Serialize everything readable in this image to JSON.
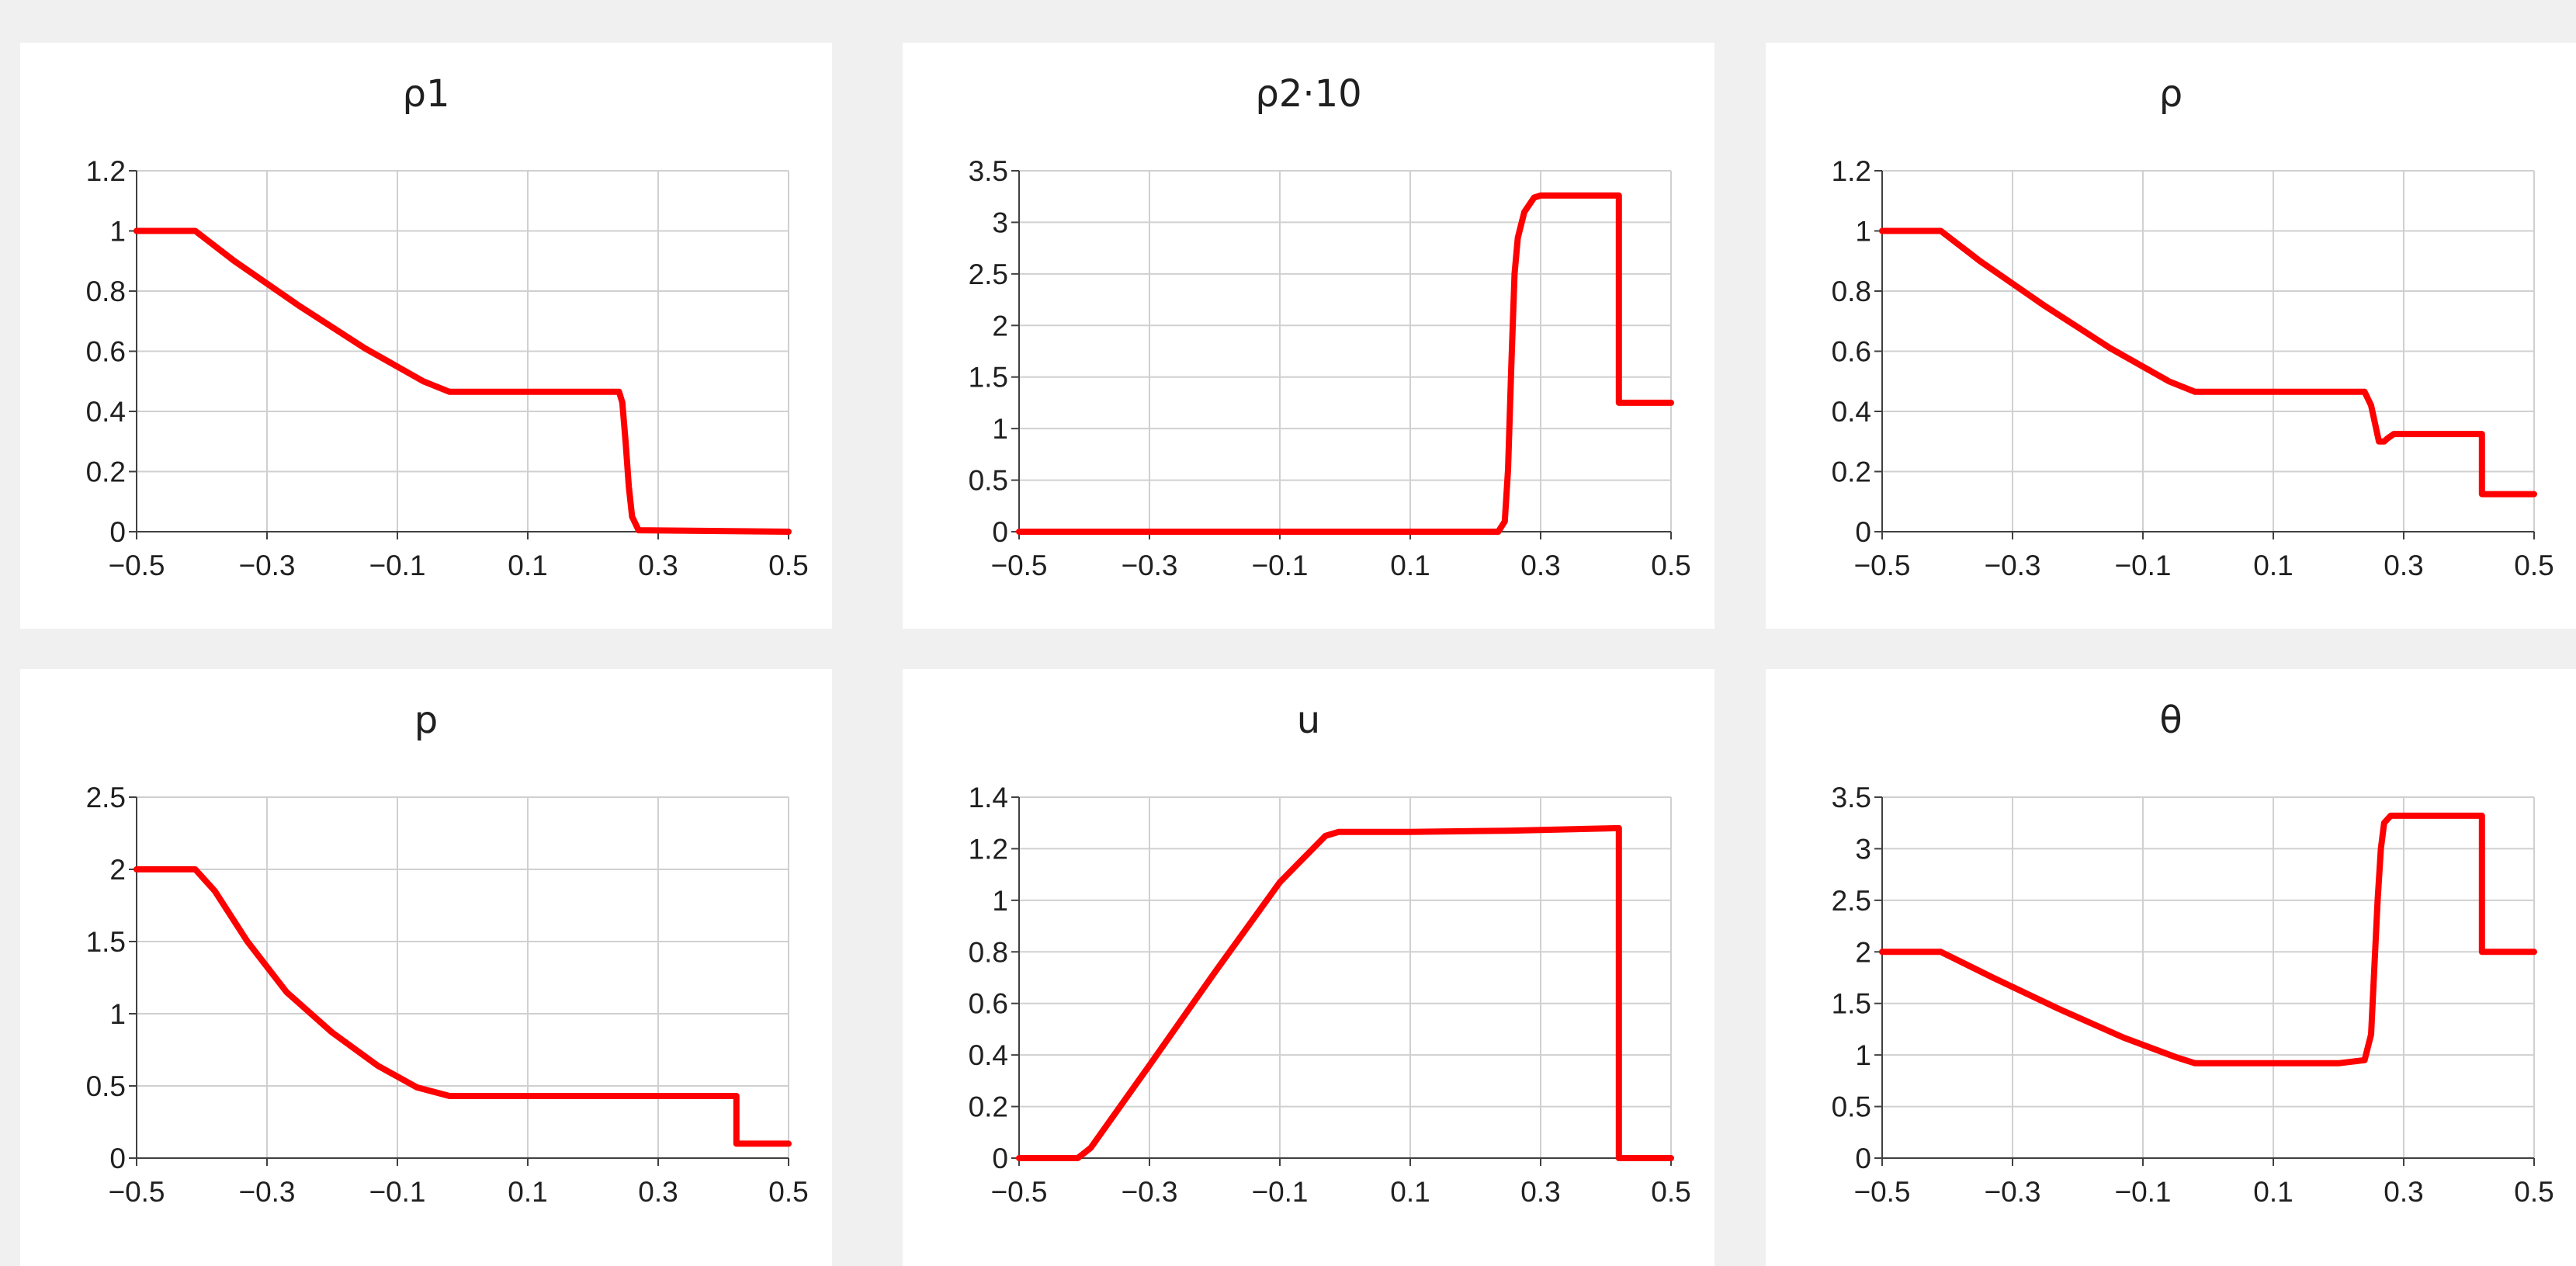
{
  "colors": {
    "line": "#ff0000",
    "overlay": "#3030ff",
    "grid": "#d0d0d0",
    "axis": "#404040"
  },
  "chart_data": [
    {
      "type": "line",
      "title": "ρ1",
      "xlim": [
        -0.5,
        0.5
      ],
      "ylim": [
        0,
        1.2
      ],
      "xticks": [
        -0.5,
        -0.3,
        -0.1,
        0.1,
        0.3,
        0.5
      ],
      "xtick_labels": [
        "−0.5",
        "−0.3",
        "−0.1",
        "0.1",
        "0.3",
        "0.5"
      ],
      "yticks": [
        0,
        0.2,
        0.4,
        0.6,
        0.8,
        1,
        1.2
      ],
      "ytick_labels": [
        "0",
        "0.2",
        "0.4",
        "0.6",
        "0.8",
        "1",
        "1.2"
      ],
      "grid": true,
      "series": [
        {
          "x": [
            -0.5,
            -0.41,
            -0.35,
            -0.25,
            -0.15,
            -0.06,
            -0.02,
            0.1,
            0.2,
            0.24,
            0.245,
            0.25,
            0.255,
            0.26,
            0.27,
            0.5
          ],
          "y": [
            1,
            1,
            0.9,
            0.75,
            0.61,
            0.5,
            0.465,
            0.465,
            0.465,
            0.465,
            0.43,
            0.3,
            0.15,
            0.05,
            0.005,
            0
          ]
        }
      ]
    },
    {
      "type": "line",
      "title": "ρ2·10",
      "xlim": [
        -0.5,
        0.5
      ],
      "ylim": [
        0,
        3.5
      ],
      "xticks": [
        -0.5,
        -0.3,
        -0.1,
        0.1,
        0.3,
        0.5
      ],
      "xtick_labels": [
        "−0.5",
        "−0.3",
        "−0.1",
        "0.1",
        "0.3",
        "0.5"
      ],
      "yticks": [
        0,
        0.5,
        1,
        1.5,
        2,
        2.5,
        3,
        3.5
      ],
      "ytick_labels": [
        "0",
        "0.5",
        "1",
        "1.5",
        "2",
        "2.5",
        "3",
        "3.5"
      ],
      "grid": true,
      "series": [
        {
          "x": [
            -0.5,
            0.235,
            0.245,
            0.25,
            0.255,
            0.26,
            0.265,
            0.275,
            0.29,
            0.3,
            0.42,
            0.42,
            0.5
          ],
          "y": [
            0,
            0,
            0.1,
            0.6,
            1.6,
            2.5,
            2.85,
            3.1,
            3.24,
            3.26,
            3.26,
            1.25,
            1.25
          ]
        }
      ]
    },
    {
      "type": "line",
      "title": "ρ",
      "xlim": [
        -0.5,
        0.5
      ],
      "ylim": [
        0,
        1.2
      ],
      "xticks": [
        -0.5,
        -0.3,
        -0.1,
        0.1,
        0.3,
        0.5
      ],
      "xtick_labels": [
        "−0.5",
        "−0.3",
        "−0.1",
        "0.1",
        "0.3",
        "0.5"
      ],
      "yticks": [
        0,
        0.2,
        0.4,
        0.6,
        0.8,
        1,
        1.2
      ],
      "ytick_labels": [
        "0",
        "0.2",
        "0.4",
        "0.6",
        "0.8",
        "1",
        "1.2"
      ],
      "grid": true,
      "series": [
        {
          "x": [
            -0.5,
            -0.41,
            -0.35,
            -0.25,
            -0.15,
            -0.06,
            -0.02,
            0.1,
            0.2,
            0.24,
            0.25,
            0.262,
            0.27,
            0.275,
            0.285,
            0.3,
            0.42,
            0.42,
            0.5
          ],
          "y": [
            1,
            1,
            0.9,
            0.75,
            0.61,
            0.5,
            0.465,
            0.465,
            0.465,
            0.465,
            0.42,
            0.3,
            0.3,
            0.31,
            0.325,
            0.325,
            0.325,
            0.125,
            0.125
          ]
        }
      ]
    },
    {
      "type": "line",
      "title": "p",
      "xlim": [
        -0.5,
        0.5
      ],
      "ylim": [
        0,
        2.5
      ],
      "xticks": [
        -0.5,
        -0.3,
        -0.1,
        0.1,
        0.3,
        0.5
      ],
      "xtick_labels": [
        "−0.5",
        "−0.3",
        "−0.1",
        "0.1",
        "0.3",
        "0.5"
      ],
      "yticks": [
        0,
        0.5,
        1,
        1.5,
        2,
        2.5
      ],
      "ytick_labels": [
        "0",
        "0.5",
        "1",
        "1.5",
        "2",
        "2.5"
      ],
      "grid": true,
      "series": [
        {
          "x": [
            -0.5,
            -0.41,
            -0.38,
            -0.33,
            -0.27,
            -0.2,
            -0.13,
            -0.07,
            -0.02,
            0.1,
            0.3,
            0.42,
            0.42,
            0.5
          ],
          "y": [
            2,
            2,
            1.85,
            1.5,
            1.15,
            0.87,
            0.64,
            0.49,
            0.43,
            0.43,
            0.43,
            0.43,
            0.1,
            0.1
          ]
        }
      ]
    },
    {
      "type": "line",
      "title": "u",
      "xlim": [
        -0.5,
        0.5
      ],
      "ylim": [
        0,
        1.4
      ],
      "xticks": [
        -0.5,
        -0.3,
        -0.1,
        0.1,
        0.3,
        0.5
      ],
      "xtick_labels": [
        "−0.5",
        "−0.3",
        "−0.1",
        "0.1",
        "0.3",
        "0.5"
      ],
      "yticks": [
        0,
        0.2,
        0.4,
        0.6,
        0.8,
        1,
        1.2,
        1.4
      ],
      "ytick_labels": [
        "0",
        "0.2",
        "0.4",
        "0.6",
        "0.8",
        "1",
        "1.2",
        "1.4"
      ],
      "grid": true,
      "series": [
        {
          "x": [
            -0.5,
            -0.41,
            -0.39,
            -0.3,
            -0.2,
            -0.1,
            -0.03,
            -0.01,
            0.1,
            0.25,
            0.42,
            0.42,
            0.5
          ],
          "y": [
            0,
            0,
            0.04,
            0.36,
            0.72,
            1.07,
            1.25,
            1.265,
            1.265,
            1.27,
            1.28,
            0,
            0
          ]
        }
      ]
    },
    {
      "type": "line",
      "title": "θ",
      "xlim": [
        -0.5,
        0.5
      ],
      "ylim": [
        0,
        3.5
      ],
      "xticks": [
        -0.5,
        -0.3,
        -0.1,
        0.1,
        0.3,
        0.5
      ],
      "xtick_labels": [
        "−0.5",
        "−0.3",
        "−0.1",
        "0.1",
        "0.3",
        "0.5"
      ],
      "yticks": [
        0,
        0.5,
        1,
        1.5,
        2,
        2.5,
        3,
        3.5
      ],
      "ytick_labels": [
        "0",
        "0.5",
        "1",
        "1.5",
        "2",
        "2.5",
        "3",
        "3.5"
      ],
      "grid": true,
      "series": [
        {
          "x": [
            -0.5,
            -0.41,
            -0.33,
            -0.23,
            -0.13,
            -0.05,
            -0.02,
            0.1,
            0.2,
            0.24,
            0.25,
            0.26,
            0.265,
            0.27,
            0.28,
            0.3,
            0.42,
            0.42,
            0.5
          ],
          "y": [
            2,
            2,
            1.75,
            1.45,
            1.17,
            0.98,
            0.92,
            0.92,
            0.92,
            0.95,
            1.2,
            2.5,
            3.0,
            3.25,
            3.32,
            3.32,
            3.32,
            2,
            2
          ]
        }
      ]
    }
  ]
}
